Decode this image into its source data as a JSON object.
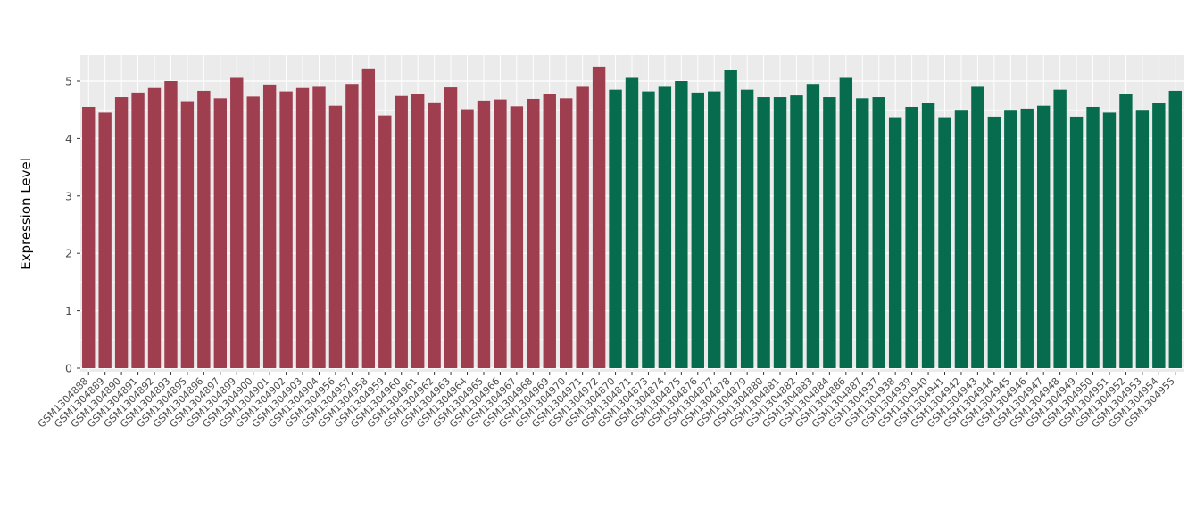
{
  "chart_data": {
    "type": "bar",
    "title": "",
    "xlabel": "",
    "ylabel": "Expression Level",
    "ylim": [
      0,
      5.45
    ],
    "yticks": [
      0,
      1,
      2,
      3,
      4,
      5
    ],
    "panel_bg": "#EBEBEB",
    "grid_color": "#FFFFFF",
    "axis_text_color": "#4d4d4d",
    "legend": "none",
    "series": [
      {
        "name": "group-maroon",
        "color": "#9E3E4F",
        "labels": [
          "GSM1304888",
          "GSM1304889",
          "GSM1304890",
          "GSM1304891",
          "GSM1304892",
          "GSM1304893",
          "GSM1304895",
          "GSM1304896",
          "GSM1304897",
          "GSM1304899",
          "GSM1304900",
          "GSM1304901",
          "GSM1304902",
          "GSM1304903",
          "GSM1304904",
          "GSM1304956",
          "GSM1304957",
          "GSM1304958",
          "GSM1304959",
          "GSM1304960",
          "GSM1304961",
          "GSM1304962",
          "GSM1304963",
          "GSM1304964",
          "GSM1304965",
          "GSM1304966",
          "GSM1304967",
          "GSM1304968",
          "GSM1304969",
          "GSM1304970",
          "GSM1304971",
          "GSM1304972"
        ],
        "values": [
          4.55,
          4.45,
          4.72,
          4.8,
          4.88,
          5.0,
          4.65,
          4.83,
          4.7,
          5.07,
          4.73,
          4.94,
          4.82,
          4.88,
          4.9,
          4.57,
          4.95,
          5.22,
          4.4,
          4.74,
          4.78,
          4.63,
          4.89,
          4.51,
          4.66,
          4.68,
          4.56,
          4.69,
          4.78,
          4.7,
          4.9,
          5.25
        ]
      },
      {
        "name": "group-green",
        "color": "#066C4D",
        "labels": [
          "GSM1304870",
          "GSM1304871",
          "GSM1304873",
          "GSM1304874",
          "GSM1304875",
          "GSM1304876",
          "GSM1304877",
          "GSM1304878",
          "GSM1304879",
          "GSM1304880",
          "GSM1304881",
          "GSM1304882",
          "GSM1304883",
          "GSM1304884",
          "GSM1304886",
          "GSM1304887",
          "GSM1304937",
          "GSM1304938",
          "GSM1304939",
          "GSM1304940",
          "GSM1304941",
          "GSM1304942",
          "GSM1304943",
          "GSM1304944",
          "GSM1304945",
          "GSM1304946",
          "GSM1304947",
          "GSM1304948",
          "GSM1304949",
          "GSM1304950",
          "GSM1304951",
          "GSM1304952",
          "GSM1304953",
          "GSM1304954",
          "GSM1304955"
        ],
        "values": [
          4.85,
          5.07,
          4.82,
          4.9,
          5.0,
          4.8,
          4.82,
          5.2,
          4.85,
          4.72,
          4.72,
          4.75,
          4.95,
          4.72,
          5.07,
          4.7,
          4.72,
          4.37,
          4.55,
          4.62,
          4.37,
          4.5,
          4.9,
          4.38,
          4.5,
          4.52,
          4.57,
          4.85,
          4.38,
          4.55,
          4.45,
          4.78,
          4.5,
          4.62,
          4.83
        ]
      }
    ]
  }
}
